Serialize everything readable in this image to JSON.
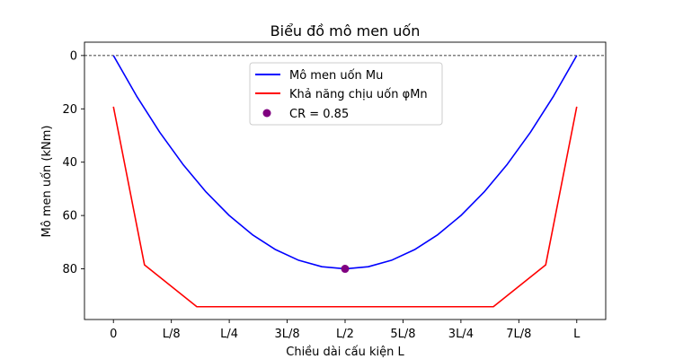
{
  "chart_data": {
    "type": "line",
    "title": "Biểu đồ mô men uốn",
    "xlabel": "Chiều dài cấu kiện L",
    "ylabel": "Mô men uốn (kNm)",
    "y_inverted": true,
    "xlim": [
      -0.0625,
      1.0625
    ],
    "ylim": [
      -5,
      99
    ],
    "x_ticks": [
      {
        "v": 0,
        "label": "0"
      },
      {
        "v": 0.125,
        "label": "L/8"
      },
      {
        "v": 0.25,
        "label": "L/4"
      },
      {
        "v": 0.375,
        "label": "3L/8"
      },
      {
        "v": 0.5,
        "label": "L/2"
      },
      {
        "v": 0.625,
        "label": "5L/8"
      },
      {
        "v": 0.75,
        "label": "3L/4"
      },
      {
        "v": 0.875,
        "label": "7L/8"
      },
      {
        "v": 1,
        "label": "L"
      }
    ],
    "y_ticks": [
      {
        "v": 0,
        "label": "0"
      },
      {
        "v": 20,
        "label": "20"
      },
      {
        "v": 40,
        "label": "40"
      },
      {
        "v": 60,
        "label": "60"
      },
      {
        "v": 80,
        "label": "80"
      }
    ],
    "reference_line": {
      "y": 0,
      "style": "dashed",
      "color": "#000000"
    },
    "series": [
      {
        "name": "Mô men uốn Mu",
        "color": "#0000ff",
        "x": [
          0,
          0.05,
          0.1,
          0.15,
          0.2,
          0.25,
          0.3,
          0.35,
          0.4,
          0.45,
          0.5,
          0.55,
          0.6,
          0.65,
          0.7,
          0.75,
          0.8,
          0.85,
          0.9,
          0.95,
          1
        ],
        "y": [
          0,
          15.2,
          28.8,
          40.8,
          51.2,
          60,
          67.2,
          72.8,
          76.8,
          79.2,
          80,
          79.2,
          76.8,
          72.8,
          67.2,
          60,
          51.2,
          40.8,
          28.8,
          15.2,
          0
        ]
      },
      {
        "name": "Khả năng chịu uốn φMn",
        "color": "#ff0000",
        "x": [
          0,
          0.067,
          0.18,
          0.82,
          0.933,
          1
        ],
        "y": [
          19.2,
          78.5,
          94.2,
          94.2,
          78.5,
          19.2
        ]
      }
    ],
    "points": [
      {
        "name": "CR = 0.85",
        "x": 0.5,
        "y": 80,
        "color": "#800080"
      }
    ],
    "legend_position": "upper-center"
  }
}
